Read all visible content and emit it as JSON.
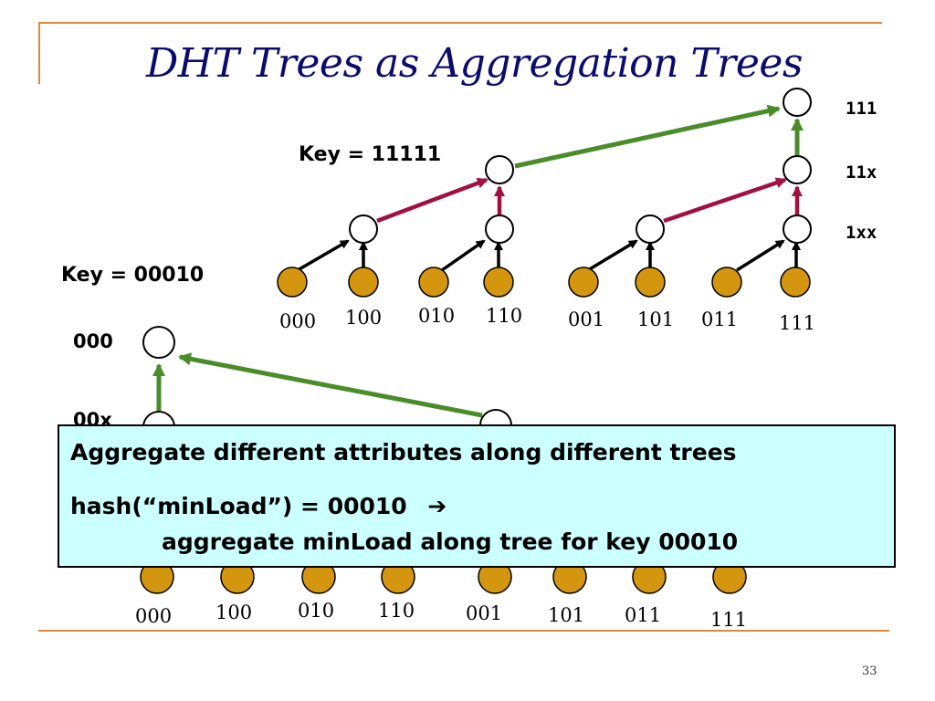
{
  "slide": {
    "title": "DHT Trees as Aggregation Trees",
    "page_number": "33"
  },
  "top_tree": {
    "key_label": "Key = 11111",
    "level_labels": [
      "111",
      "11x",
      "1xx"
    ],
    "leaf_labels": [
      "000",
      "100",
      "010",
      "110",
      "001",
      "101",
      "011",
      "111"
    ]
  },
  "bottom_tree": {
    "key_label": "Key = 00010",
    "level_labels": [
      "000",
      "00x"
    ],
    "leaf_labels": [
      "000",
      "100",
      "010",
      "110",
      "001",
      "101",
      "011",
      "111"
    ]
  },
  "callout": {
    "line1": "Aggregate different attributes along different trees",
    "line2": "hash(“minLoad”) = 00010",
    "line2_arrow": "➔",
    "line3": "aggregate minLoad along tree for key 00010"
  },
  "colors": {
    "leaf_fill": "#d4960f",
    "green_edge": "#4a8c2a",
    "red_edge": "#a01040",
    "callout_bg": "#ccffff",
    "rule": "#d98a3c",
    "title": "#0b0b6e"
  }
}
